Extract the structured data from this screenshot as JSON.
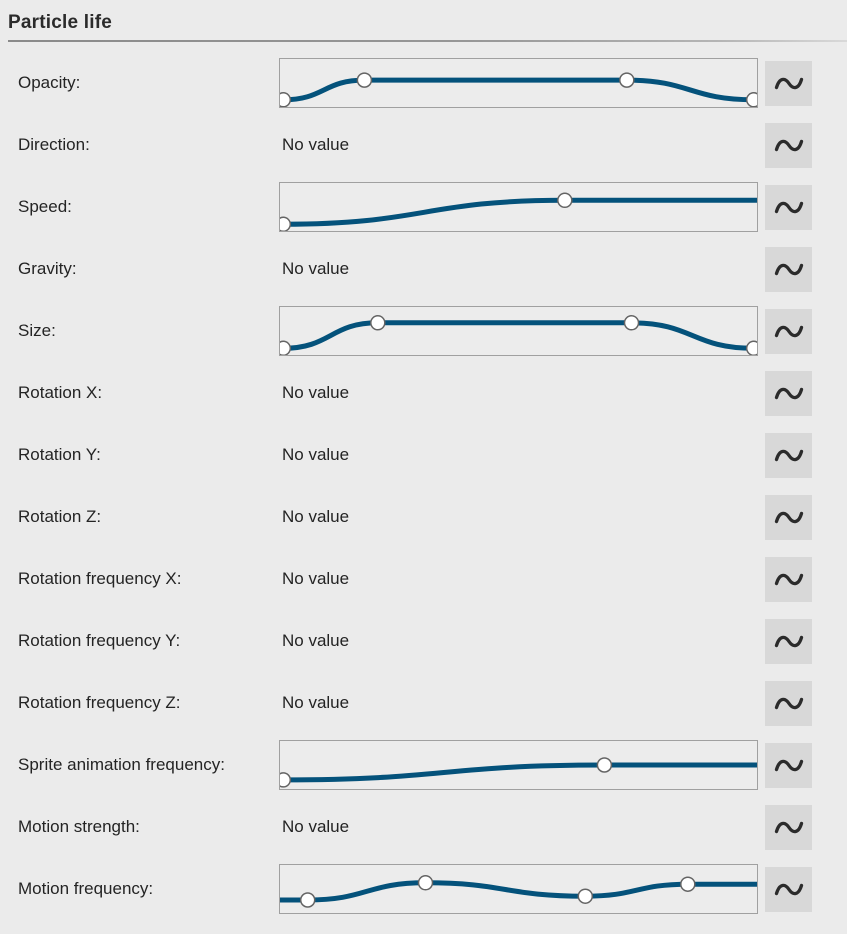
{
  "header": {
    "title": "Particle life"
  },
  "colors": {
    "background": "#ebebeb",
    "curve": "#04527b",
    "handle_fill": "#ffffff",
    "handle_stroke": "#646464",
    "editor_border": "#a0a0a0",
    "button_bg": "#d8d8d8",
    "icon": "#2b2b2b"
  },
  "no_value_text": "No value",
  "wave_button": {
    "icon": "sine-wave-icon"
  },
  "rows": [
    {
      "id": "opacity",
      "label": "Opacity:",
      "type": "curve",
      "curve": {
        "points": [
          [
            0.007,
            0.85
          ],
          [
            0.177,
            0.44
          ],
          [
            0.727,
            0.44
          ],
          [
            0.993,
            0.85
          ]
        ],
        "circles": [
          0,
          1,
          2,
          3
        ]
      }
    },
    {
      "id": "direction",
      "label": "Direction:",
      "type": "no-value",
      "value_text": "No value"
    },
    {
      "id": "speed",
      "label": "Speed:",
      "type": "curve",
      "curve": {
        "points": [
          [
            0.007,
            0.86
          ],
          [
            0.597,
            0.36
          ],
          [
            1.0,
            0.36
          ]
        ],
        "circles": [
          0,
          1
        ]
      }
    },
    {
      "id": "gravity",
      "label": "Gravity:",
      "type": "no-value",
      "value_text": "No value"
    },
    {
      "id": "size",
      "label": "Size:",
      "type": "curve",
      "curve": {
        "points": [
          [
            0.007,
            0.86
          ],
          [
            0.205,
            0.33
          ],
          [
            0.737,
            0.33
          ],
          [
            0.993,
            0.86
          ]
        ],
        "circles": [
          0,
          1,
          2,
          3
        ]
      }
    },
    {
      "id": "rotation-x",
      "label": "Rotation X:",
      "type": "no-value",
      "value_text": "No value"
    },
    {
      "id": "rotation-y",
      "label": "Rotation Y:",
      "type": "no-value",
      "value_text": "No value"
    },
    {
      "id": "rotation-z",
      "label": "Rotation Z:",
      "type": "no-value",
      "value_text": "No value"
    },
    {
      "id": "rotation-frequency-x",
      "label": "Rotation frequency X:",
      "type": "no-value",
      "value_text": "No value"
    },
    {
      "id": "rotation-frequency-y",
      "label": "Rotation frequency Y:",
      "type": "no-value",
      "value_text": "No value"
    },
    {
      "id": "rotation-frequency-z",
      "label": "Rotation frequency Z:",
      "type": "no-value",
      "value_text": "No value"
    },
    {
      "id": "sprite-animation-frequency",
      "label": "Sprite animation frequency:",
      "type": "curve",
      "curve": {
        "points": [
          [
            0.007,
            0.81
          ],
          [
            0.68,
            0.5
          ],
          [
            1.0,
            0.5
          ]
        ],
        "circles": [
          0,
          1
        ]
      }
    },
    {
      "id": "motion-strength",
      "label": "Motion strength:",
      "type": "no-value",
      "value_text": "No value"
    },
    {
      "id": "motion-frequency",
      "label": "Motion frequency:",
      "type": "curve",
      "curve": {
        "points": [
          [
            0.0,
            0.73
          ],
          [
            0.058,
            0.73
          ],
          [
            0.305,
            0.37
          ],
          [
            0.64,
            0.65
          ],
          [
            0.855,
            0.4
          ],
          [
            1.0,
            0.4
          ]
        ],
        "circles": [
          1,
          2,
          3,
          4
        ]
      }
    }
  ]
}
